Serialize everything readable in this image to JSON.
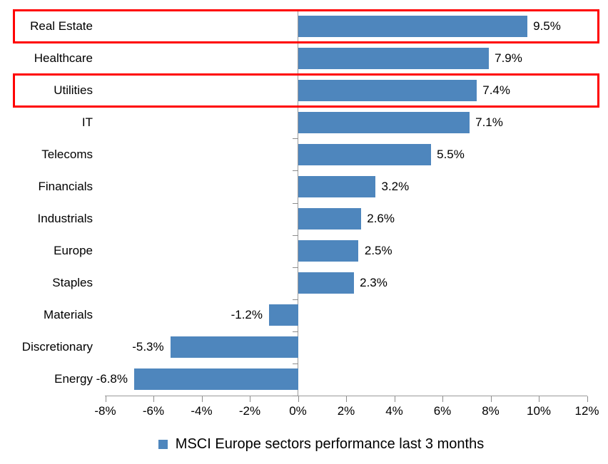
{
  "chart_data": {
    "type": "bar",
    "orientation": "horizontal",
    "title": "",
    "categories": [
      "Real Estate",
      "Healthcare",
      "Utilities",
      "IT",
      "Telecoms",
      "Financials",
      "Industrials",
      "Europe",
      "Staples",
      "Materials",
      "Discretionary",
      "Energy"
    ],
    "values": [
      9.5,
      7.9,
      7.4,
      7.1,
      5.5,
      3.2,
      2.6,
      2.5,
      2.3,
      -1.2,
      -5.3,
      -6.8
    ],
    "value_labels": [
      "9.5%",
      "7.9%",
      "7.4%",
      "7.1%",
      "5.5%",
      "3.2%",
      "2.6%",
      "2.5%",
      "2.3%",
      "-1.2%",
      "-5.3%",
      "-6.8%"
    ],
    "x_tick_labels": [
      "-8%",
      "-6%",
      "-4%",
      "-2%",
      "0%",
      "2%",
      "4%",
      "6%",
      "8%",
      "10%",
      "12%"
    ],
    "xlim": [
      -8,
      12
    ],
    "xlabel": "",
    "ylabel": "",
    "grid": "off",
    "data_labels": "outside-end",
    "legend": {
      "label": "MSCI Europe sectors performance last 3 months",
      "position": "bottom"
    },
    "highlighted_categories": [
      "Real Estate",
      "Utilities"
    ],
    "colors": {
      "bar": "#4E86BD",
      "highlight_box": "#FF0000",
      "axis_line": "#9A9A9A",
      "tick": "#8C8C8C",
      "text": "#000000"
    }
  }
}
